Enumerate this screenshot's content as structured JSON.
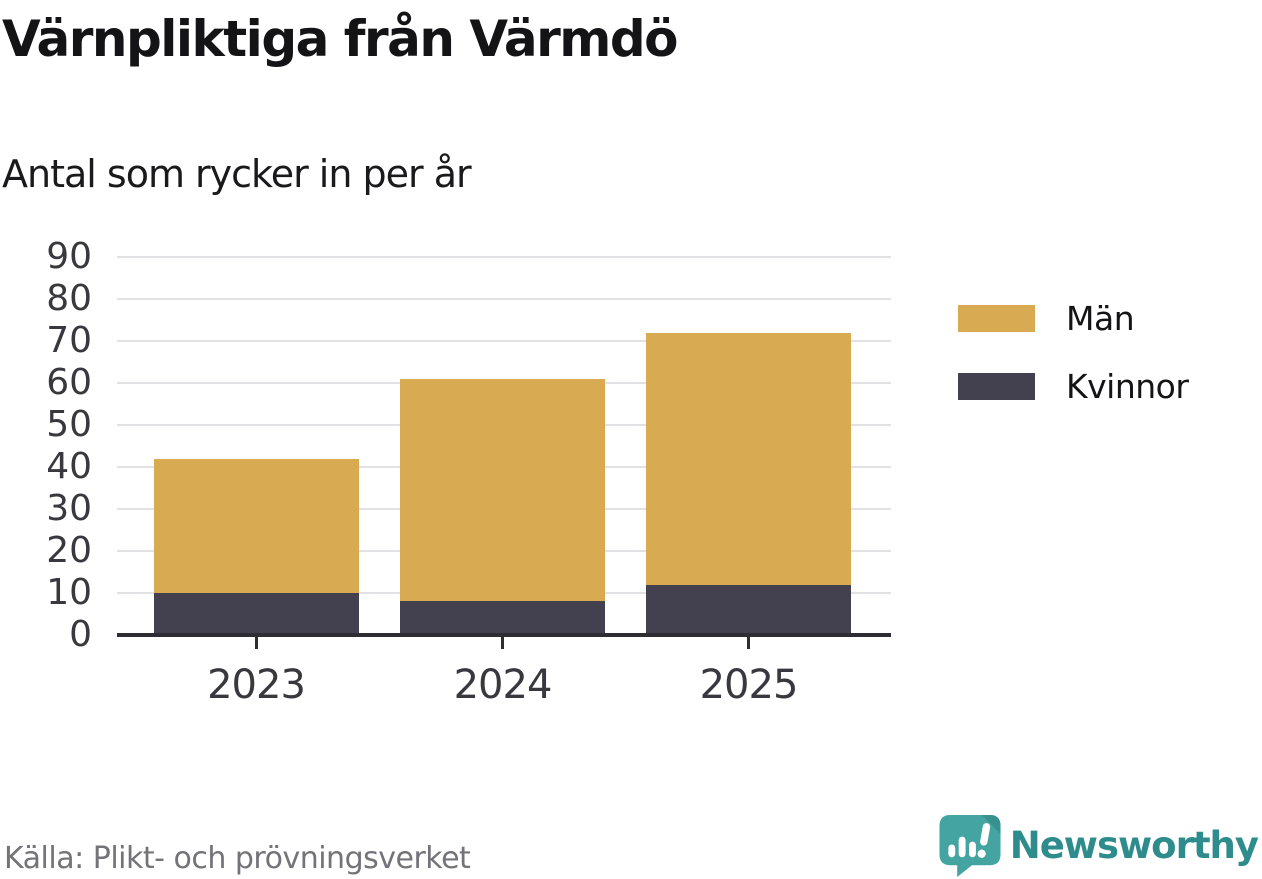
{
  "header": {
    "title": "Värnpliktiga från Värmdö",
    "subtitle": "Antal som rycker in per år"
  },
  "chart_data": {
    "type": "bar",
    "stacked": true,
    "categories": [
      "2023",
      "2024",
      "2025"
    ],
    "series": [
      {
        "name": "Män",
        "color": "#d8aa52",
        "values": [
          32,
          53,
          60
        ]
      },
      {
        "name": "Kvinnor",
        "color": "#434150",
        "values": [
          10,
          8,
          12
        ]
      }
    ],
    "stack_totals": [
      42,
      61,
      72
    ],
    "title": "Värnpliktiga från Värmdö",
    "subtitle": "Antal som rycker in per år",
    "xlabel": "",
    "ylabel": "",
    "ylim": [
      0,
      90
    ],
    "ytick_step": 10,
    "grid": true,
    "legend_position": "right"
  },
  "footer": {
    "source": "Källa: Plikt- och prövningsverket",
    "brand": "Newsworthy"
  },
  "icons": {
    "brand_logo": "bar-chart-speech-bubble-icon"
  },
  "colors": {
    "men": "#d8aa52",
    "women": "#434150",
    "axis": "#2e2d33",
    "gridline": "#e2e2e4",
    "tick_label": "#39383e",
    "source_text": "#747379",
    "brand_teal_icon": "#43a4a1",
    "brand_teal_dark": "#37918e",
    "brand_teal_text": "#2e8c8c",
    "background": "#ffffff"
  }
}
